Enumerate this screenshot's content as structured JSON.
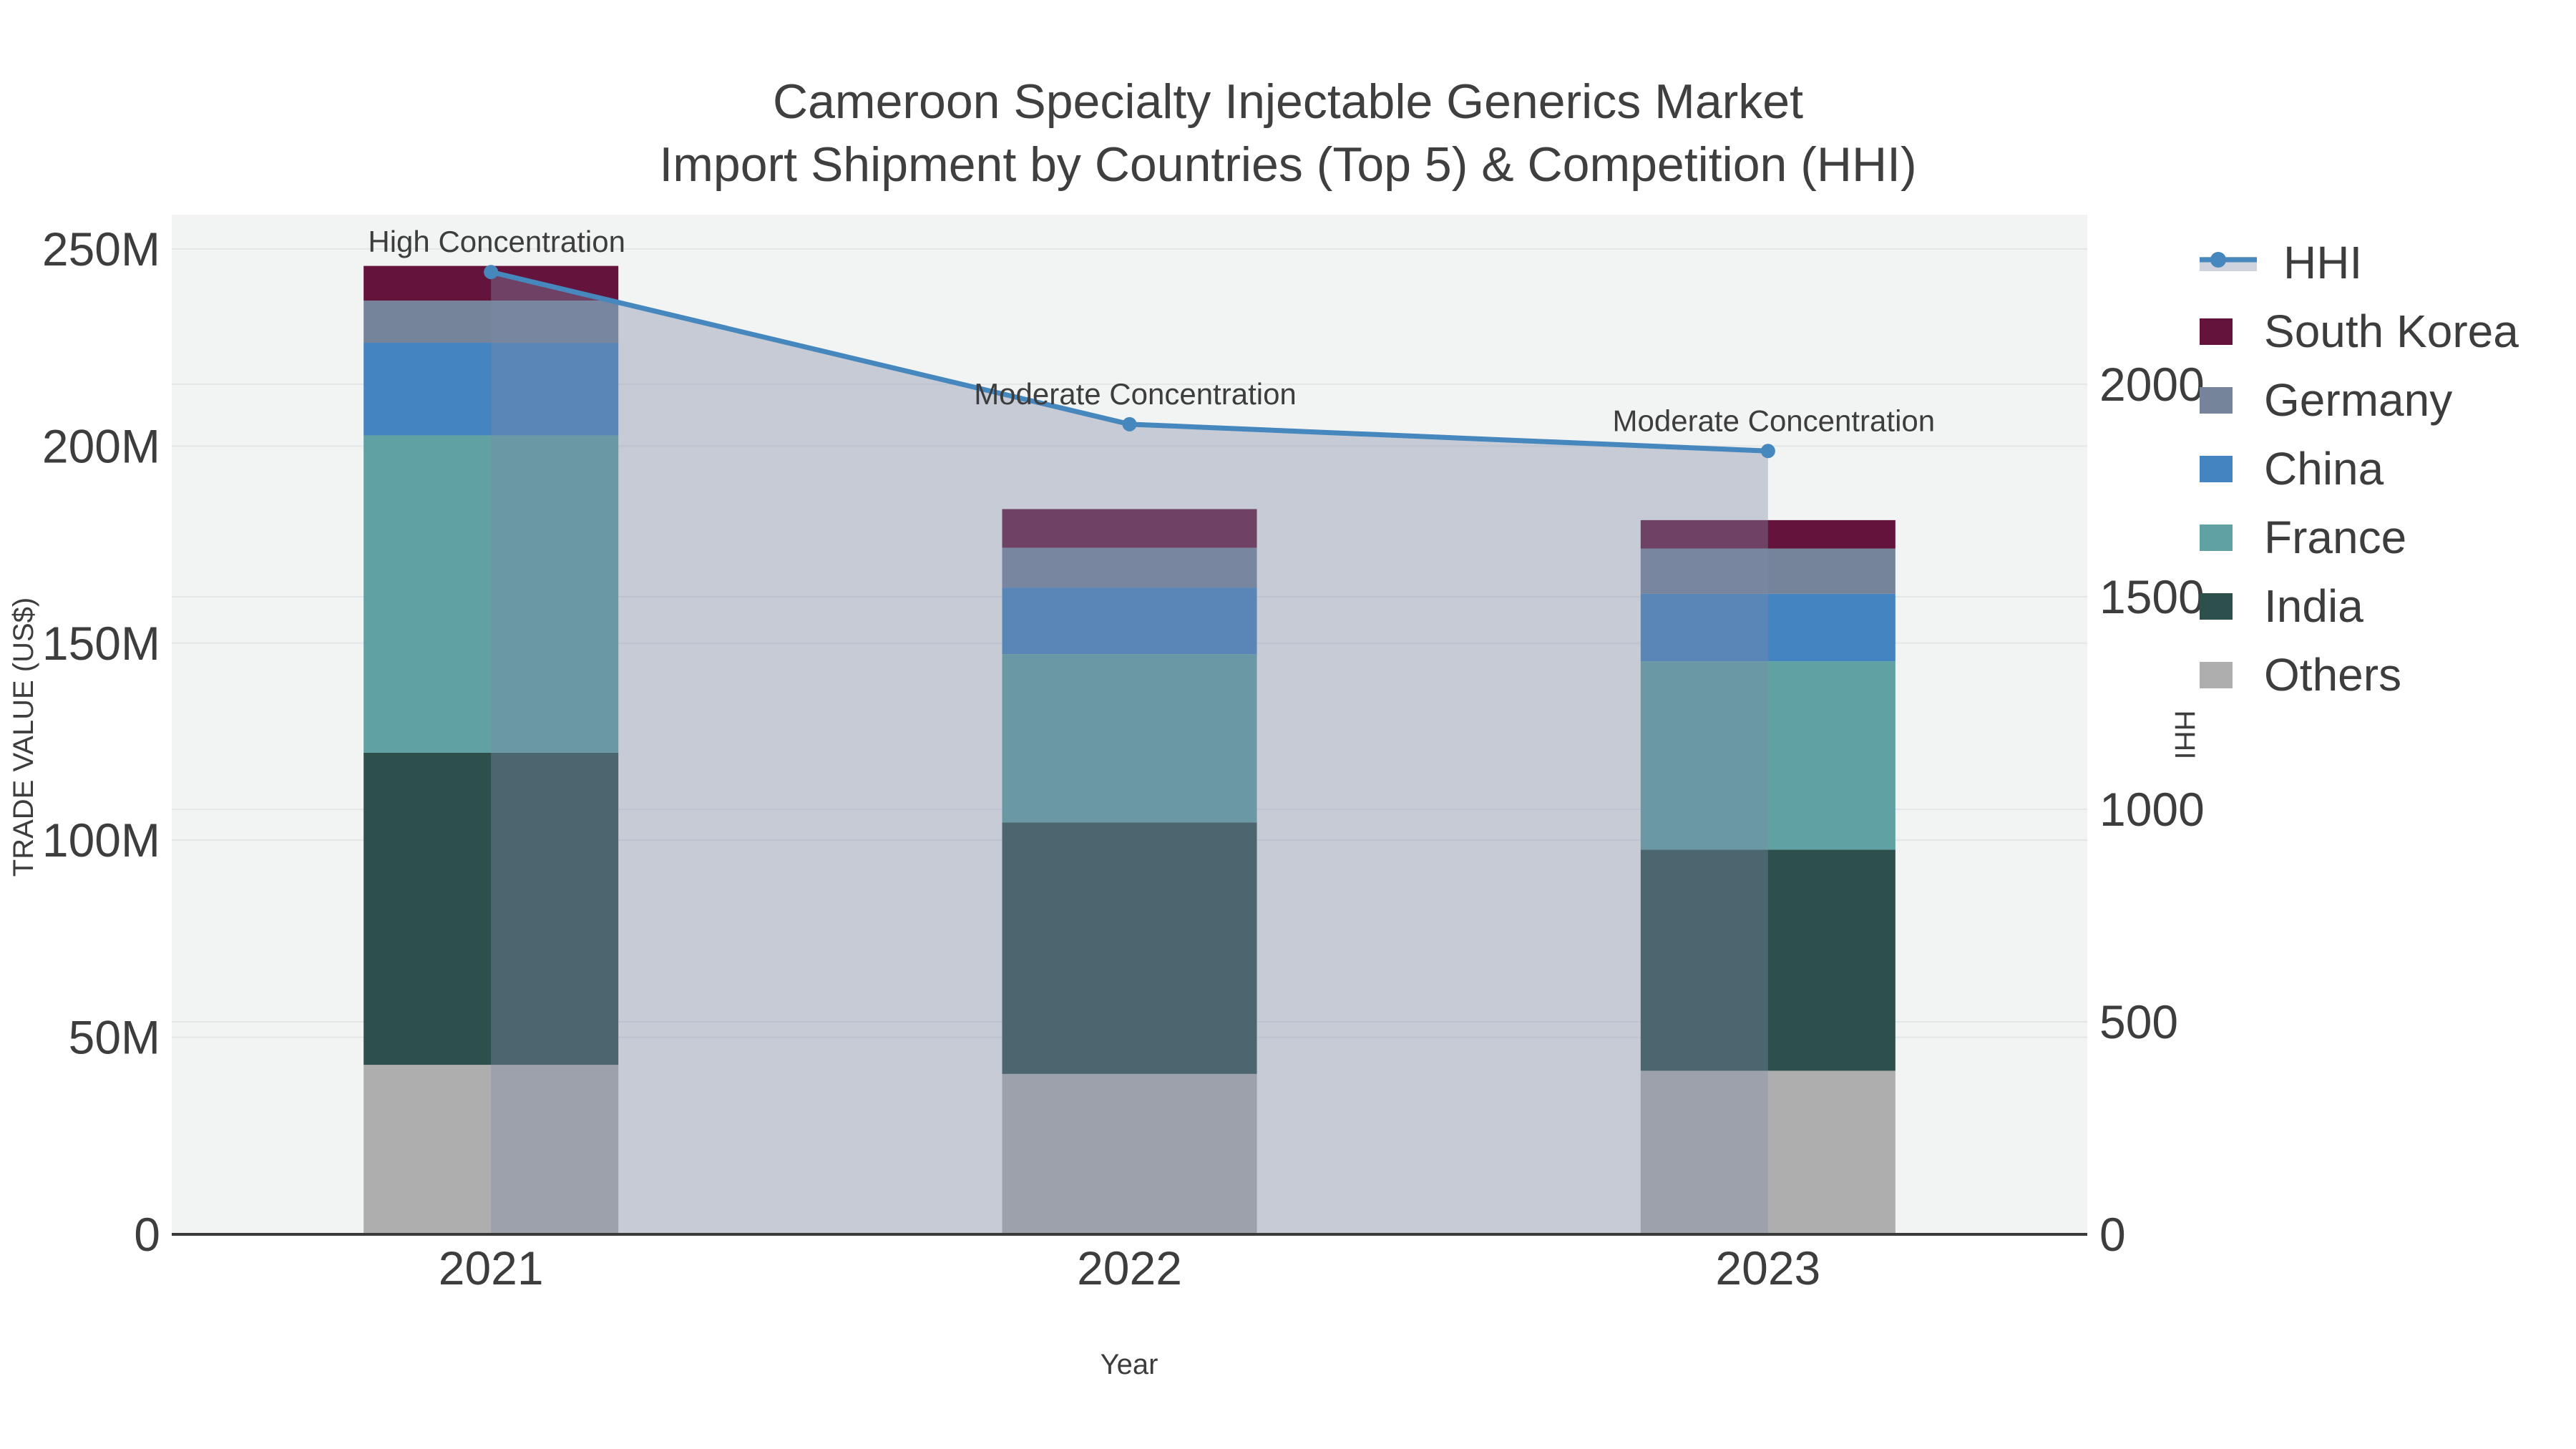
{
  "title": {
    "line1": "Cameroon Specialty Injectable Generics Market",
    "line2": "Import Shipment by Countries (Top 5) & Competition (HHI)"
  },
  "legend": {
    "items": [
      {
        "id": "hhi",
        "label": "HHI",
        "color": "#4687be",
        "type": "line"
      },
      {
        "id": "south-korea",
        "label": "South Korea",
        "color": "#64143c",
        "type": "swatch"
      },
      {
        "id": "germany",
        "label": "Germany",
        "color": "#75849a",
        "type": "swatch"
      },
      {
        "id": "china",
        "label": "China",
        "color": "#4484c0",
        "type": "swatch"
      },
      {
        "id": "france",
        "label": "France",
        "color": "#60a1a3",
        "type": "swatch"
      },
      {
        "id": "india",
        "label": "India",
        "color": "#2e504c",
        "type": "swatch"
      },
      {
        "id": "others",
        "label": "Others",
        "color": "#aeaeae",
        "type": "swatch"
      }
    ]
  },
  "colors": {
    "plot_background": "#f2f3f3",
    "gridline": "#e4e7e7",
    "axis_line": "#3a3a3a",
    "tick_text": "#3d3d3d",
    "title_text": "#3f3f3f",
    "annotation_text": "#111111",
    "hhi_line": "#4687be",
    "hhi_area_fill": "rgba(125,140,169,0.38)"
  },
  "chart_data": {
    "type": "bar+line",
    "title": "Cameroon Specialty Injectable Generics Market — Import Shipment by Countries (Top 5) & Competition (HHI)",
    "categories": [
      "2021",
      "2022",
      "2023"
    ],
    "stacked": true,
    "series": [
      {
        "name": "Others",
        "values": [
          43.0,
          40.7,
          41.5
        ],
        "color": "#aeaeae"
      },
      {
        "name": "India",
        "values": [
          79.2,
          63.8,
          56.1
        ],
        "color": "#2e504c"
      },
      {
        "name": "France",
        "values": [
          80.5,
          42.7,
          47.8
        ],
        "color": "#60a1a3"
      },
      {
        "name": "China",
        "values": [
          23.5,
          16.9,
          17.1
        ],
        "color": "#4484c0"
      },
      {
        "name": "Germany",
        "values": [
          10.7,
          10.1,
          11.5
        ],
        "color": "#75849a"
      },
      {
        "name": "South Korea",
        "values": [
          8.8,
          9.8,
          7.2
        ],
        "color": "#64143c"
      }
    ],
    "bar_totals_musd": [
      245.7,
      184.0,
      181.2
    ],
    "line_series": {
      "name": "HHI",
      "axis": "right",
      "values": [
        2264,
        1906,
        1843
      ],
      "color": "#4687be",
      "area_fill": "rgba(125,140,169,0.38)",
      "markers": true
    },
    "xlabel": "Year",
    "ylabel_left": "TRADE VALUE (US$)",
    "ylabel_right": "HHI",
    "ylim_left": [
      0,
      258.7
    ],
    "ylim_right": [
      0,
      2399
    ],
    "yticks_left": {
      "values": [
        0,
        50,
        100,
        150,
        200,
        250
      ],
      "labels": [
        "0",
        "50M",
        "100M",
        "150M",
        "200M",
        "250M"
      ]
    },
    "yticks_right": {
      "values": [
        0,
        500,
        1000,
        1500,
        2000
      ],
      "labels": [
        "0",
        "500",
        "1000",
        "1500",
        "2000"
      ]
    },
    "grid": true,
    "legend_position": "right",
    "annotations": [
      {
        "text": "High Concentration",
        "category": "2021"
      },
      {
        "text": "Moderate Concentration",
        "category": "2022"
      },
      {
        "text": "Moderate Concentration",
        "category": "2023"
      }
    ]
  }
}
